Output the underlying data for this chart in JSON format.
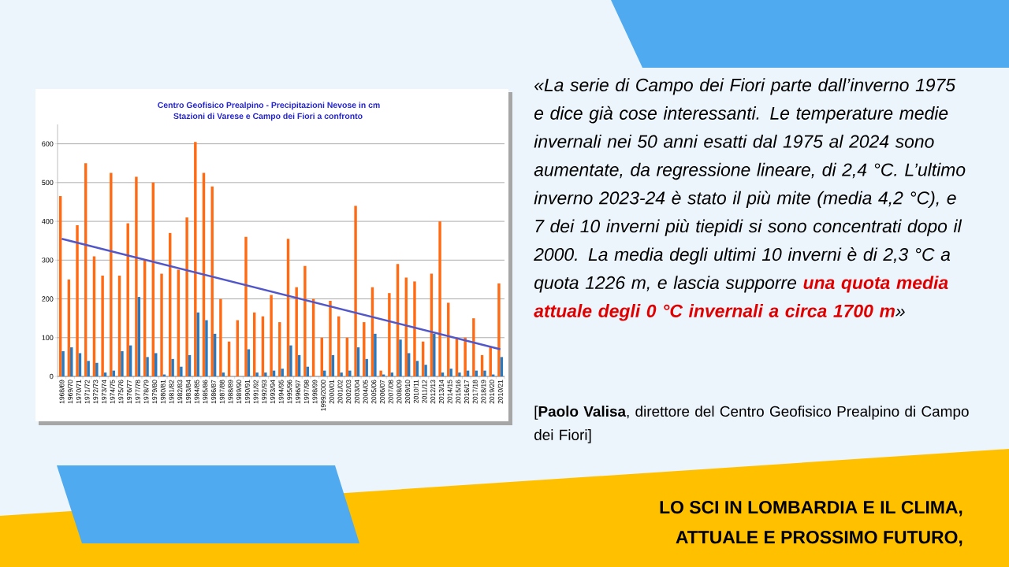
{
  "chart_data": {
    "type": "bar",
    "title": "Centro Geofisico Prealpino - Precipitazioni Nevose in cm",
    "subtitle": "Stazioni di Varese e Campo dei Fiori a confronto",
    "annotations": [
      "«La serie di Campo dei Fiori parte dall’inverno 1975 e dice già cose interessanti. Le temperature medie invernali nei 50 anni esatti dal 1975 al 2024 sono aumentate, da regressione lineare, di 2,4 °C. L’ultimo inverno 2023-24 è stato il più mite (media 4,2 °C), e 7 dei 10 inverni più tiepidi si sono concentrati dopo il 2000. La media degli ultimi 10 inverni è di 2,3 °C a quota 1226 m, e lascia supporre **una quota media attuale degli 0 °C invernali a circa 1700 m**»",
      "[**Paolo Valisa**, direttore del Centro Geofisico Prealpino di Campo dei Fiori]",
      "LO SCI IN LOMBARDIA E IL CLIMA,",
      "ATTUALE E PROSSIMO FUTURO,"
    ],
    "categories": [
      "1968/69",
      "1969/70",
      "1970/71",
      "1971/72",
      "1972/73",
      "1973/74",
      "1974/75",
      "1975/76",
      "1976/77",
      "1977/78",
      "1978/79",
      "1979/80",
      "1980/81",
      "1981/82",
      "1982/83",
      "1983/84",
      "1984/85",
      "1985/86",
      "1986/87",
      "1987/88",
      "1988/89",
      "1989/90",
      "1990/91",
      "1991/92",
      "1992/93",
      "1993/94",
      "1994/95",
      "1995/96",
      "1996/97",
      "1997/98",
      "1998/99",
      "1999/2000",
      "2000/01",
      "2001/02",
      "2002/03",
      "2003/04",
      "2004/05",
      "2005/06",
      "2006/07",
      "2007/08",
      "2008/09",
      "2009/10",
      "2010/11",
      "2011/12",
      "2012/13",
      "2013/14",
      "2014/15",
      "2015/16",
      "2016/17",
      "2017/18",
      "2018/19",
      "2019/20",
      "2010/21"
    ],
    "series": [
      {
        "color": "#ff6a13",
        "values": [
          465,
          250,
          390,
          550,
          310,
          260,
          525,
          260,
          395,
          515,
          300,
          500,
          265,
          370,
          275,
          410,
          605,
          525,
          490,
          200,
          90,
          145,
          360,
          165,
          155,
          210,
          140,
          355,
          230,
          285,
          200,
          100,
          195,
          155,
          100,
          440,
          140,
          230,
          15,
          215,
          290,
          255,
          245,
          90,
          265,
          400,
          190,
          100,
          100,
          150,
          55,
          75,
          240
        ]
      },
      {
        "color": "#2a78bd",
        "values": [
          65,
          75,
          60,
          40,
          35,
          10,
          15,
          65,
          80,
          205,
          50,
          60,
          5,
          45,
          25,
          55,
          165,
          145,
          110,
          10,
          0,
          0,
          70,
          10,
          10,
          15,
          20,
          80,
          55,
          25,
          0,
          15,
          55,
          10,
          15,
          75,
          45,
          110,
          5,
          10,
          95,
          60,
          40,
          30,
          110,
          10,
          20,
          10,
          15,
          15,
          15,
          5,
          50
        ]
      },
      {
        "type": "line",
        "color": "#5156c8",
        "x": [
          "1968/69",
          "2010/21"
        ],
        "values": [
          355,
          70
        ]
      }
    ],
    "ylim": [
      0,
      650
    ],
    "yticks": [
      0,
      100,
      200,
      300,
      400,
      500,
      600
    ],
    "grid": "y"
  }
}
